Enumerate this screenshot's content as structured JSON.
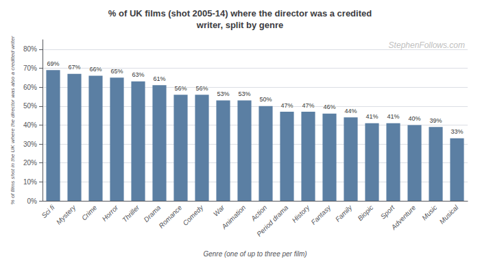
{
  "chart_data": {
    "type": "bar",
    "title": "% of UK films (shot 2005-14) where the director was a credited\nwriter, split by genre",
    "xlabel": "Genre (one of up to three per film)",
    "ylabel": "% of films shot in the UK where the director was also a credited writer",
    "annotations": [
      "StephenFollows.com"
    ],
    "categories": [
      "Sci fi",
      "Mystery",
      "Crime",
      "Horror",
      "Thriller",
      "Drama",
      "Romance",
      "Comedy",
      "War",
      "Animation",
      "Action",
      "Period drama",
      "History",
      "Fantasy",
      "Family",
      "Biopic",
      "Sport",
      "Adventure",
      "Music",
      "Musical"
    ],
    "values": [
      69,
      67,
      66,
      65,
      63,
      61,
      56,
      56,
      53,
      53,
      50,
      47,
      47,
      46,
      44,
      41,
      41,
      40,
      39,
      33
    ],
    "value_labels": [
      "69%",
      "67%",
      "66%",
      "65%",
      "63%",
      "61%",
      "56%",
      "56%",
      "53%",
      "53%",
      "50%",
      "47%",
      "47%",
      "46%",
      "44%",
      "41%",
      "41%",
      "40%",
      "39%",
      "33%"
    ],
    "data_labels": true,
    "color": "#5b7fa3",
    "ylim": [
      0,
      85
    ],
    "yticks": [
      {
        "value": 0,
        "label": "0%"
      },
      {
        "value": 10,
        "label": "10%"
      },
      {
        "value": 20,
        "label": "20%"
      },
      {
        "value": 30,
        "label": "30%"
      },
      {
        "value": 40,
        "label": "40%"
      },
      {
        "value": 50,
        "label": "50%"
      },
      {
        "value": 60,
        "label": "60%"
      },
      {
        "value": 70,
        "label": "70%"
      },
      {
        "value": 80,
        "label": "80%"
      }
    ],
    "grid": true
  }
}
